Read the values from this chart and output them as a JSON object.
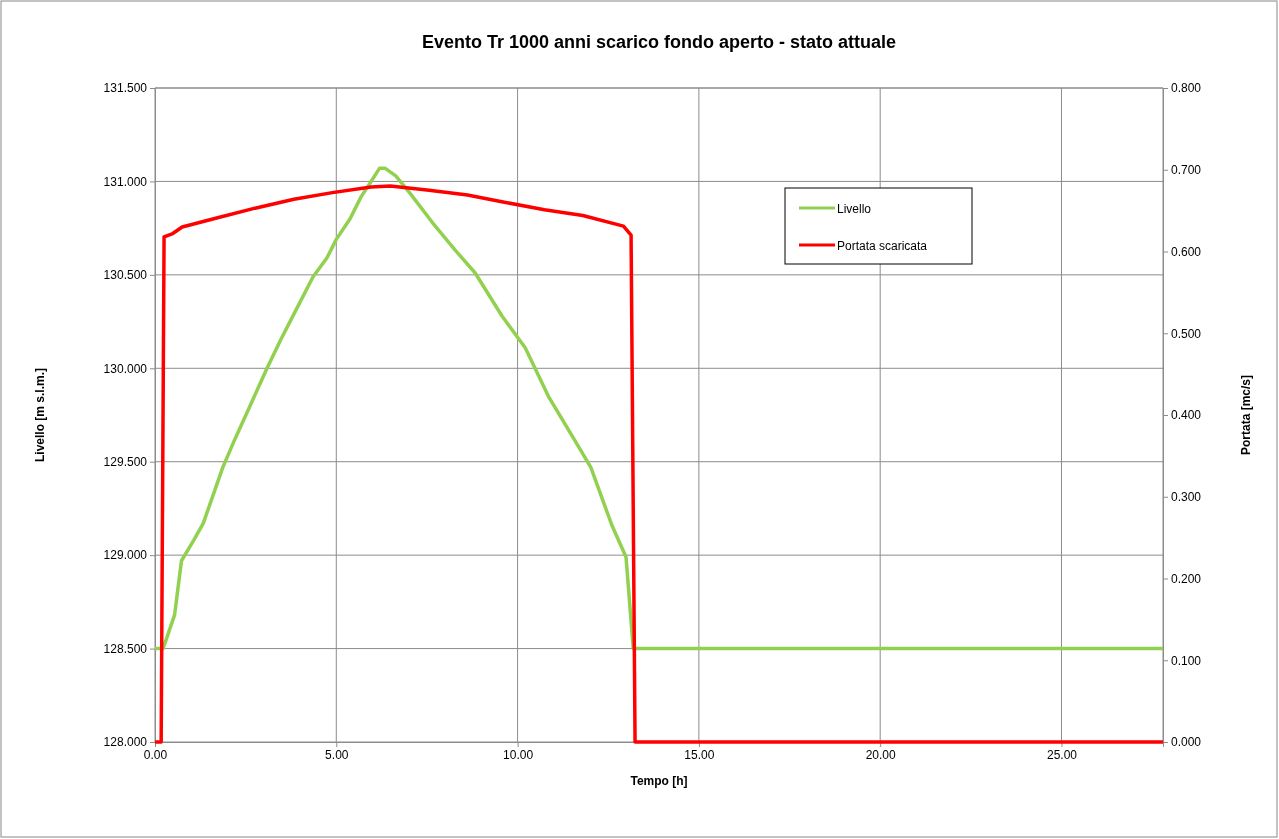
{
  "chart_data": {
    "type": "line",
    "title": "Evento Tr 1000 anni scarico fondo aperto - stato attuale",
    "xlabel": "Tempo [h]",
    "ylabel": "Livello [m s.l.m.]",
    "y2label": "Portata [mc/s]",
    "xlim": [
      0,
      27.8
    ],
    "xticks": [
      {
        "value": 0,
        "label": "0.00"
      },
      {
        "value": 5,
        "label": "5.00"
      },
      {
        "value": 10,
        "label": "10.00"
      },
      {
        "value": 15,
        "label": "15.00"
      },
      {
        "value": 20,
        "label": "20.00"
      },
      {
        "value": 25,
        "label": "25.00"
      }
    ],
    "ylim": [
      128,
      131.5
    ],
    "yticks": [
      {
        "value": 128,
        "label": "128.000"
      },
      {
        "value": 128.5,
        "label": "128.500"
      },
      {
        "value": 129,
        "label": "129.000"
      },
      {
        "value": 129.5,
        "label": "129.500"
      },
      {
        "value": 130,
        "label": "130.000"
      },
      {
        "value": 130.5,
        "label": "130.500"
      },
      {
        "value": 131,
        "label": "131.000"
      },
      {
        "value": 131.5,
        "label": "131.500"
      }
    ],
    "y2lim": [
      0,
      0.8
    ],
    "y2ticks": [
      {
        "value": 0,
        "label": "0.000"
      },
      {
        "value": 0.1,
        "label": "0.100"
      },
      {
        "value": 0.2,
        "label": "0.200"
      },
      {
        "value": 0.3,
        "label": "0.300"
      },
      {
        "value": 0.4,
        "label": "0.400"
      },
      {
        "value": 0.5,
        "label": "0.500"
      },
      {
        "value": 0.6,
        "label": "0.600"
      },
      {
        "value": 0.7,
        "label": "0.700"
      },
      {
        "value": 0.8,
        "label": "0.800"
      }
    ],
    "grid": true,
    "legend": "top right",
    "series": [
      {
        "name": "Livello",
        "color": "#92d050",
        "x": [
          0,
          0.22,
          0.33,
          0.54,
          0.73,
          1.07,
          1.33,
          1.6,
          1.87,
          2.18,
          2.67,
          3.09,
          3.46,
          3.83,
          4.36,
          4.74,
          5,
          5.38,
          5.69,
          5.96,
          6.19,
          6.35,
          6.64,
          7.02,
          7.65,
          8.29,
          8.83,
          9.57,
          10.21,
          10.85,
          11.59,
          12.02,
          12.6,
          12.99,
          13.19,
          27.8
        ],
        "values": [
          128.5,
          128.5,
          128.56,
          128.68,
          128.97,
          129.08,
          129.17,
          129.32,
          129.47,
          129.61,
          129.82,
          130,
          130.15,
          130.29,
          130.49,
          130.59,
          130.69,
          130.8,
          130.92,
          131,
          131.07,
          131.07,
          131.03,
          130.94,
          130.78,
          130.63,
          130.51,
          130.28,
          130.11,
          129.85,
          129.61,
          129.47,
          129.16,
          128.99,
          128.5,
          128.5
        ]
      },
      {
        "name": "Portata scaricata",
        "color": "#ff0000",
        "axis": "y2",
        "x": [
          0,
          0.17,
          0.25,
          0.49,
          0.75,
          1.7,
          2.76,
          3.83,
          4.89,
          5.96,
          6.49,
          7.56,
          8.62,
          9.67,
          10.74,
          11.8,
          12.92,
          13.13,
          13.24,
          27.8
        ],
        "values": [
          0,
          0,
          0.618,
          0.622,
          0.63,
          0.641,
          0.653,
          0.664,
          0.672,
          0.679,
          0.68,
          0.675,
          0.669,
          0.66,
          0.651,
          0.644,
          0.631,
          0.62,
          0,
          0
        ]
      }
    ]
  }
}
